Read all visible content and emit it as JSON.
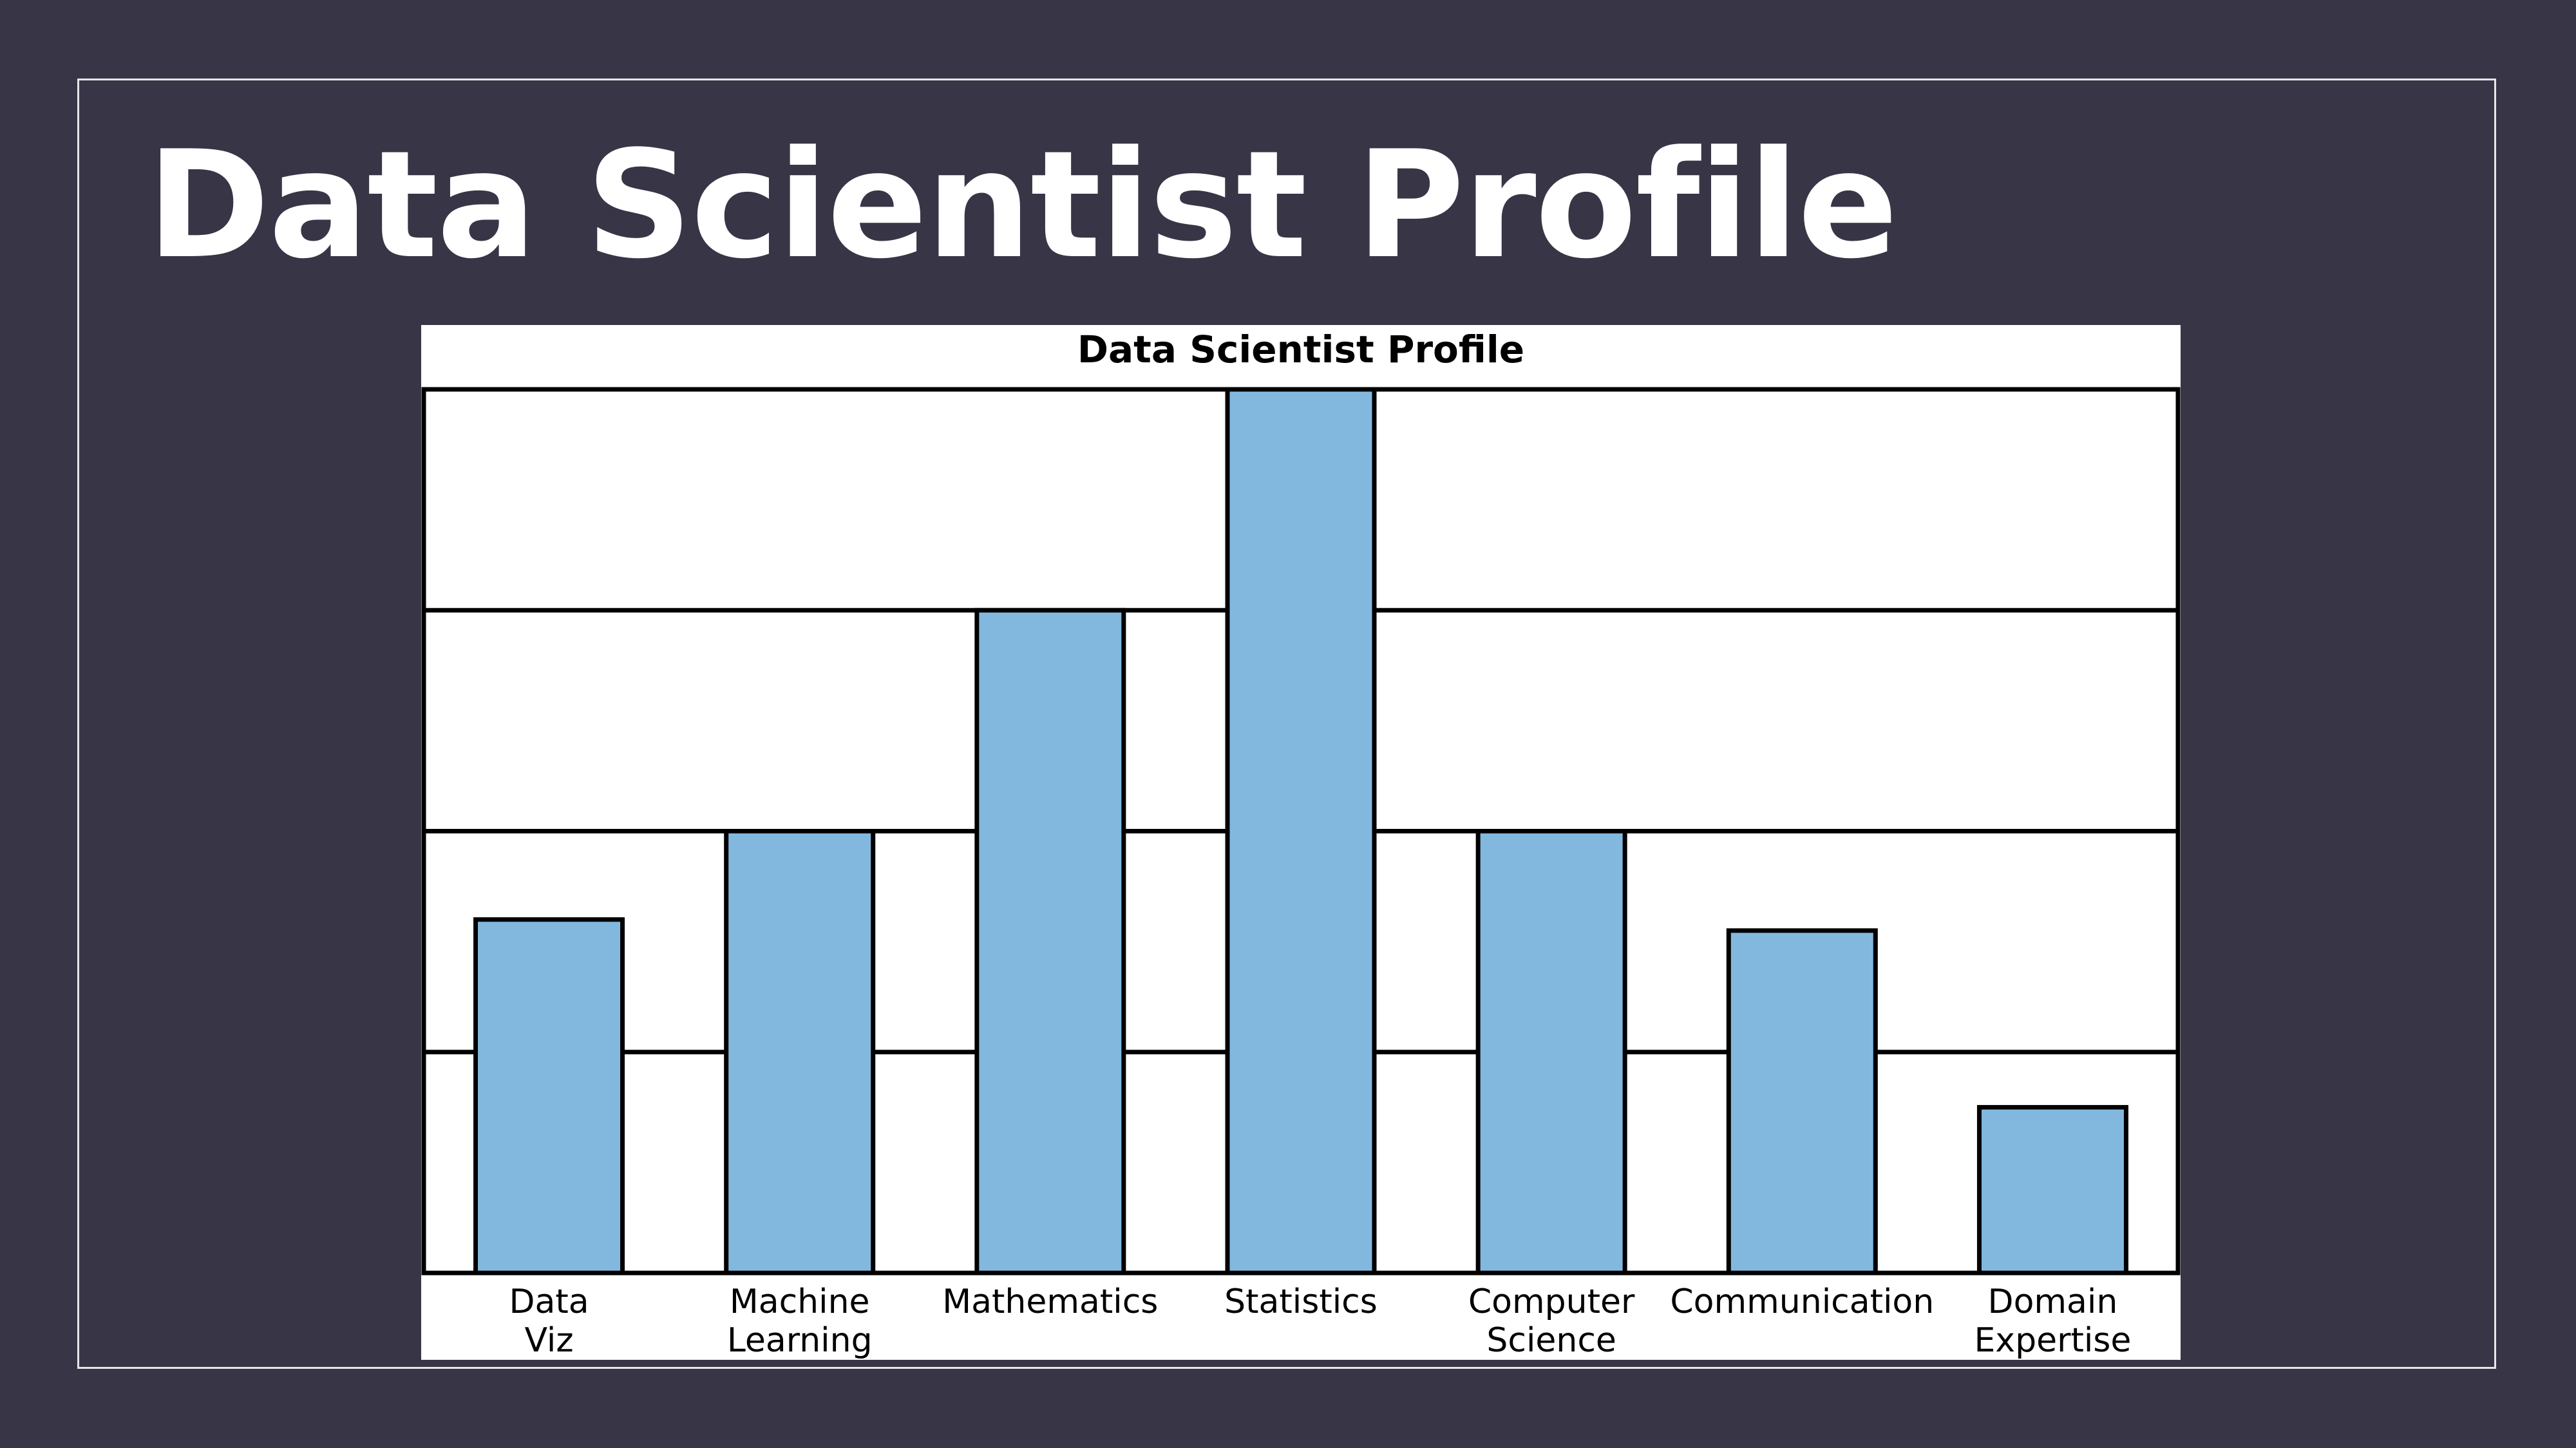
{
  "slide": {
    "title": "Data Scientist Profile"
  },
  "colors": {
    "background": "#373546",
    "bar_fill": "#83b8de",
    "bar_stroke": "#000000",
    "grid": "#000000",
    "title_text": "#ffffff"
  },
  "chart_data": {
    "type": "bar",
    "title": "Data Scientist Profile",
    "xlabel": "",
    "ylabel": "",
    "ylim": [
      0,
      4
    ],
    "grid": true,
    "y_tick_labels_shown": false,
    "categories": [
      [
        "Data",
        "Viz"
      ],
      [
        "Machine",
        "Learning"
      ],
      [
        "Mathematics"
      ],
      [
        "Statistics"
      ],
      [
        "Computer",
        "Science"
      ],
      [
        "Communication"
      ],
      [
        "Domain",
        "Expertise"
      ]
    ],
    "values": [
      1.6,
      2.0,
      3.0,
      4.0,
      2.0,
      1.55,
      0.75
    ]
  }
}
